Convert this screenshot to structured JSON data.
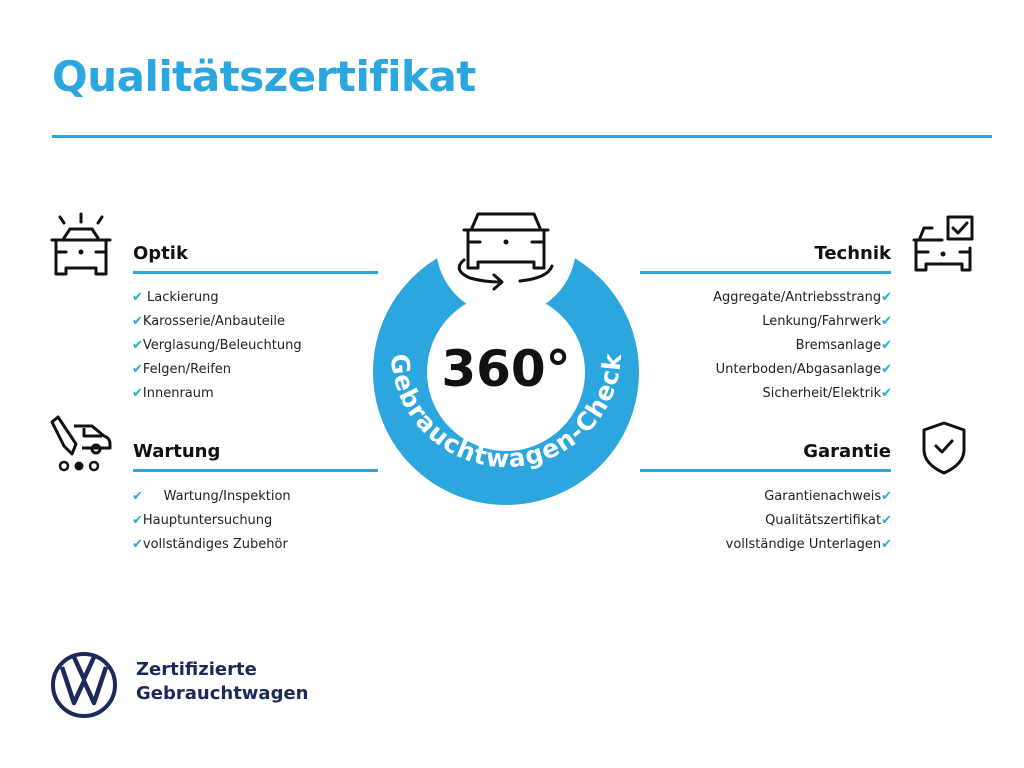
{
  "title": "Qualitätszertifikat",
  "accent_color": "#2ba6de",
  "center": {
    "big": "360°",
    "ring_text": "Gebrauchtwagen-Check",
    "icon": "car-rotate-icon"
  },
  "sections": {
    "optik": {
      "title": "Optik",
      "icon": "car-lights-icon",
      "items": [
        "Lackierung",
        "Karosserie/Anbauteile",
        "Verglasung/Beleuchtung",
        "Felgen/Reifen",
        "Innenraum"
      ]
    },
    "wartung": {
      "title": "Wartung",
      "icon": "service-car-icon",
      "items": [
        "Wartung/Inspektion",
        "Hauptuntersuchung",
        "vollständiges Zubehör"
      ]
    },
    "technik": {
      "title": "Technik",
      "icon": "car-checkbox-icon",
      "items": [
        "Aggregate/Antriebsstrang",
        "Lenkung/Fahrwerk",
        "Bremsanlage",
        "Unterboden/Abgasanlage",
        "Sicherheit/Elektrik"
      ]
    },
    "garantie": {
      "title": "Garantie",
      "icon": "shield-check-icon",
      "items": [
        "Garantienachweis",
        "Qualitätszertifikat",
        "vollständige Unterlagen"
      ]
    }
  },
  "check_mark": "✔",
  "brand": {
    "line1": "Zertifizierte",
    "line2": "Gebrauchtwagen",
    "logo": "vw-logo",
    "color": "#1b2a5a"
  }
}
